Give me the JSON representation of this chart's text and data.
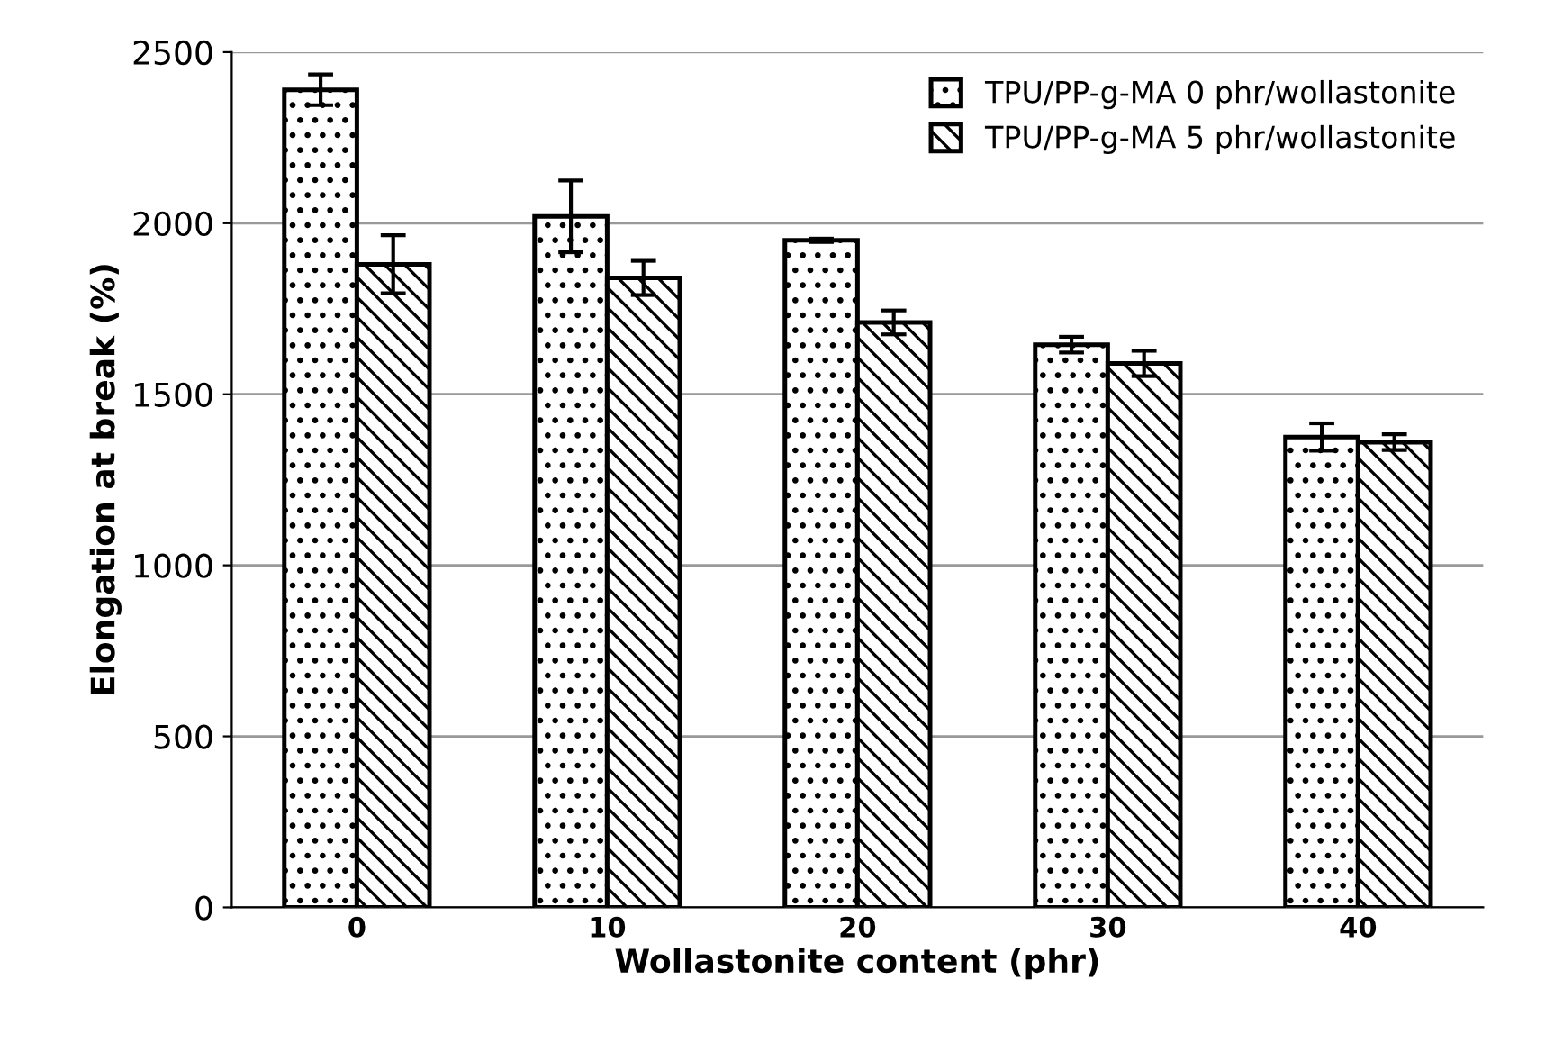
{
  "chart_data": {
    "type": "bar",
    "xlabel": "Wollastonite content (phr)",
    "ylabel": "Elongation at break (%)",
    "categories": [
      "0",
      "10",
      "20",
      "30",
      "40"
    ],
    "series": [
      {
        "name": "TPU/PP-g-MA 0 phr/wollastonite",
        "color": "#000000",
        "values": [
          2390,
          2020,
          1950,
          1645,
          1375
        ],
        "errors": [
          45,
          105,
          5,
          23,
          40
        ]
      },
      {
        "name": "TPU/PP-g-MA 5 phr/wollastonite",
        "color": "#000000",
        "values": [
          1880,
          1840,
          1710,
          1590,
          1360
        ],
        "errors": [
          85,
          50,
          35,
          37,
          23
        ]
      }
    ],
    "ylim": [
      0,
      2500
    ],
    "yticks": [
      0,
      500,
      1000,
      1500,
      2000,
      2500
    ],
    "grid": "y",
    "legend": "top right"
  }
}
